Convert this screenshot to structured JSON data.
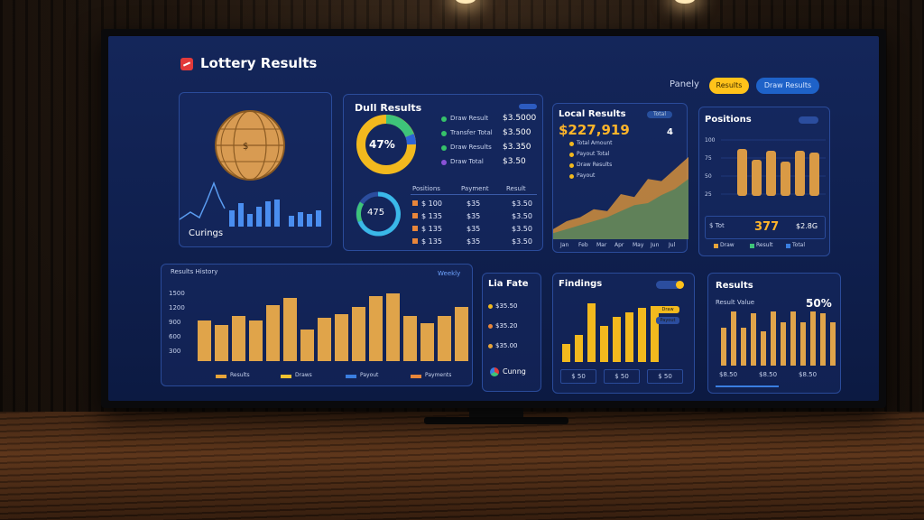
{
  "app": {
    "title": "Lottery Results"
  },
  "header": {
    "label": "Panely",
    "yellow_button": "Results",
    "blue_button": "Draw Results"
  },
  "panels": {
    "globe": {
      "caption": "Curings"
    },
    "daily": {
      "title": "Dull Results",
      "donut1_value": "47%",
      "donut2_value": "475",
      "list": [
        {
          "label": "Draw Result",
          "value": "$3.5000",
          "color": "#36c26a"
        },
        {
          "label": "Transfer Total",
          "value": "$3.500",
          "color": "#36c26a"
        },
        {
          "label": "Draw Results",
          "value": "$3.350",
          "color": "#36c26a"
        },
        {
          "label": "Draw Total",
          "value": "$3.50",
          "color": "#8a52d6"
        }
      ],
      "table_headers": [
        "Positions",
        "Payment",
        "Result"
      ],
      "table_rows": [
        [
          "$ 100",
          "$35",
          "$3.50"
        ],
        [
          "$ 135",
          "$35",
          "$3.50"
        ],
        [
          "$ 135",
          "$35",
          "$3.50"
        ],
        [
          "$ 135",
          "$35",
          "$3.50"
        ]
      ]
    },
    "local": {
      "title": "Local Results",
      "amount": "$227,919",
      "badge": "4",
      "tag": "Total",
      "legend": [
        "Total Amount",
        "Payout Total",
        "Draw Results",
        "Payout"
      ],
      "area_values_a": [
        10,
        18,
        22,
        30,
        28,
        45,
        42,
        60,
        58,
        70,
        82
      ],
      "area_values_b": [
        6,
        10,
        14,
        18,
        22,
        28,
        34,
        36,
        44,
        50,
        60
      ],
      "x_ticks": [
        "Jan",
        "Feb",
        "Mar",
        "Apr",
        "May",
        "Jun",
        "Jul"
      ]
    },
    "positions": {
      "title": "Positions",
      "bars": [
        52,
        40,
        50,
        38,
        50,
        48
      ],
      "stat_value": "377",
      "stat_right": "$2.8G",
      "left_label": "$ Tot",
      "y_ticks": [
        "100",
        "75",
        "50",
        "25"
      ],
      "legend": [
        "Draw",
        "Result",
        "Total"
      ]
    },
    "history": {
      "title": "Results History",
      "y_ticks": [
        "1500",
        "1200",
        "900",
        "600",
        "300"
      ],
      "bars": [
        45,
        40,
        50,
        45,
        62,
        70,
        35,
        48,
        52,
        60,
        72,
        75,
        50,
        42,
        50,
        60
      ],
      "legend": [
        "Results",
        "Draws",
        "Payout",
        "Payments"
      ],
      "legend_colors": [
        "#e8a53a",
        "#f2c230",
        "#3a7ee0",
        "#e8863a"
      ],
      "filter_label": "Weekly"
    },
    "live": {
      "title": "Lia Fate",
      "items": [
        "$35.50",
        "$35.20",
        "$35.00"
      ],
      "footer": "Cunng"
    },
    "findings": {
      "title": "Findings",
      "bars": [
        20,
        30,
        65,
        40,
        50,
        55,
        60,
        62
      ],
      "bottom_labels": [
        "$ 50",
        "$ 50",
        "$ 50"
      ],
      "chips": [
        "Draw",
        "Payout"
      ]
    },
    "results": {
      "title": "Results",
      "percent": "50%",
      "sub": "Result Value",
      "bars": [
        42,
        62,
        42,
        58,
        38,
        62,
        48,
        62,
        48,
        62,
        58,
        48
      ],
      "bottom_labels": [
        "$8.50",
        "$8.50",
        "$8.50"
      ]
    }
  }
}
